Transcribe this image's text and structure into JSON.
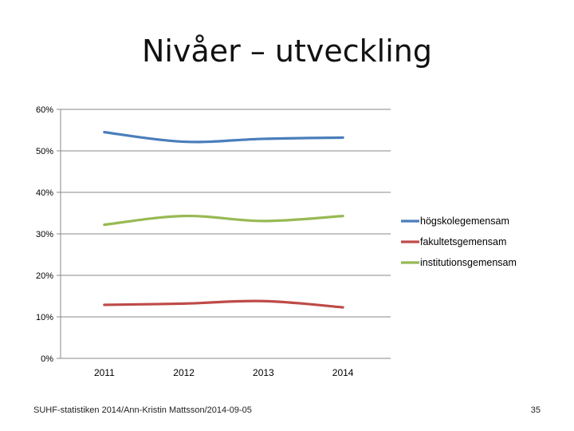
{
  "slide": {
    "title": "Nivåer – utveckling",
    "footer": "SUHF-statistiken 2014/Ann-Kristin Mattsson/2014-09-05",
    "page_number": "35"
  },
  "chart_data": {
    "type": "line",
    "categories": [
      "2011",
      "2012",
      "2013",
      "2014"
    ],
    "yticks": [
      "0%",
      "10%",
      "20%",
      "30%",
      "40%",
      "50%",
      "60%"
    ],
    "ylim": [
      0,
      60
    ],
    "grid": true,
    "legend_position": "right",
    "series": [
      {
        "name": "högskolegemensam",
        "color": "#4a7ebb",
        "values": [
          54.5,
          52.2,
          52.9,
          53.2
        ]
      },
      {
        "name": "fakultetsgemensam",
        "color": "#be4b48",
        "values": [
          12.9,
          13.2,
          13.8,
          12.3
        ]
      },
      {
        "name": "institutionsgemensam",
        "color": "#98b954",
        "values": [
          32.2,
          34.3,
          33.1,
          34.3
        ]
      }
    ]
  }
}
